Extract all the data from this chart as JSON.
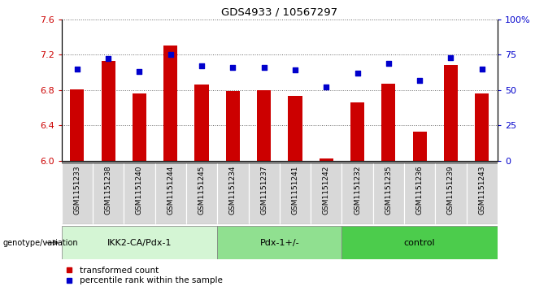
{
  "title": "GDS4933 / 10567297",
  "samples": [
    "GSM1151233",
    "GSM1151238",
    "GSM1151240",
    "GSM1151244",
    "GSM1151245",
    "GSM1151234",
    "GSM1151237",
    "GSM1151241",
    "GSM1151242",
    "GSM1151232",
    "GSM1151235",
    "GSM1151236",
    "GSM1151239",
    "GSM1151243"
  ],
  "transformed_counts": [
    6.81,
    7.13,
    6.76,
    7.3,
    6.86,
    6.79,
    6.8,
    6.73,
    6.03,
    6.66,
    6.87,
    6.33,
    7.08,
    6.76
  ],
  "percentile_ranks": [
    65,
    72,
    63,
    75,
    67,
    66,
    66,
    64,
    52,
    62,
    69,
    57,
    73,
    65
  ],
  "groups": [
    {
      "name": "IKK2-CA/Pdx-1",
      "start": 0,
      "end": 5,
      "color": "#d4f5d4"
    },
    {
      "name": "Pdx-1+/-",
      "start": 5,
      "end": 9,
      "color": "#90e090"
    },
    {
      "name": "control",
      "start": 9,
      "end": 14,
      "color": "#4ccc4c"
    }
  ],
  "ylim_left": [
    6.0,
    7.6
  ],
  "ylim_right": [
    0,
    100
  ],
  "yticks_left": [
    6.0,
    6.4,
    6.8,
    7.2,
    7.6
  ],
  "yticks_right": [
    0,
    25,
    50,
    75,
    100
  ],
  "bar_color": "#cc0000",
  "dot_color": "#0000cc",
  "sample_bg_color": "#d8d8d8",
  "plot_bg_color": "#ffffff",
  "genotype_label": "genotype/variation",
  "legend_bar": "transformed count",
  "legend_dot": "percentile rank within the sample"
}
